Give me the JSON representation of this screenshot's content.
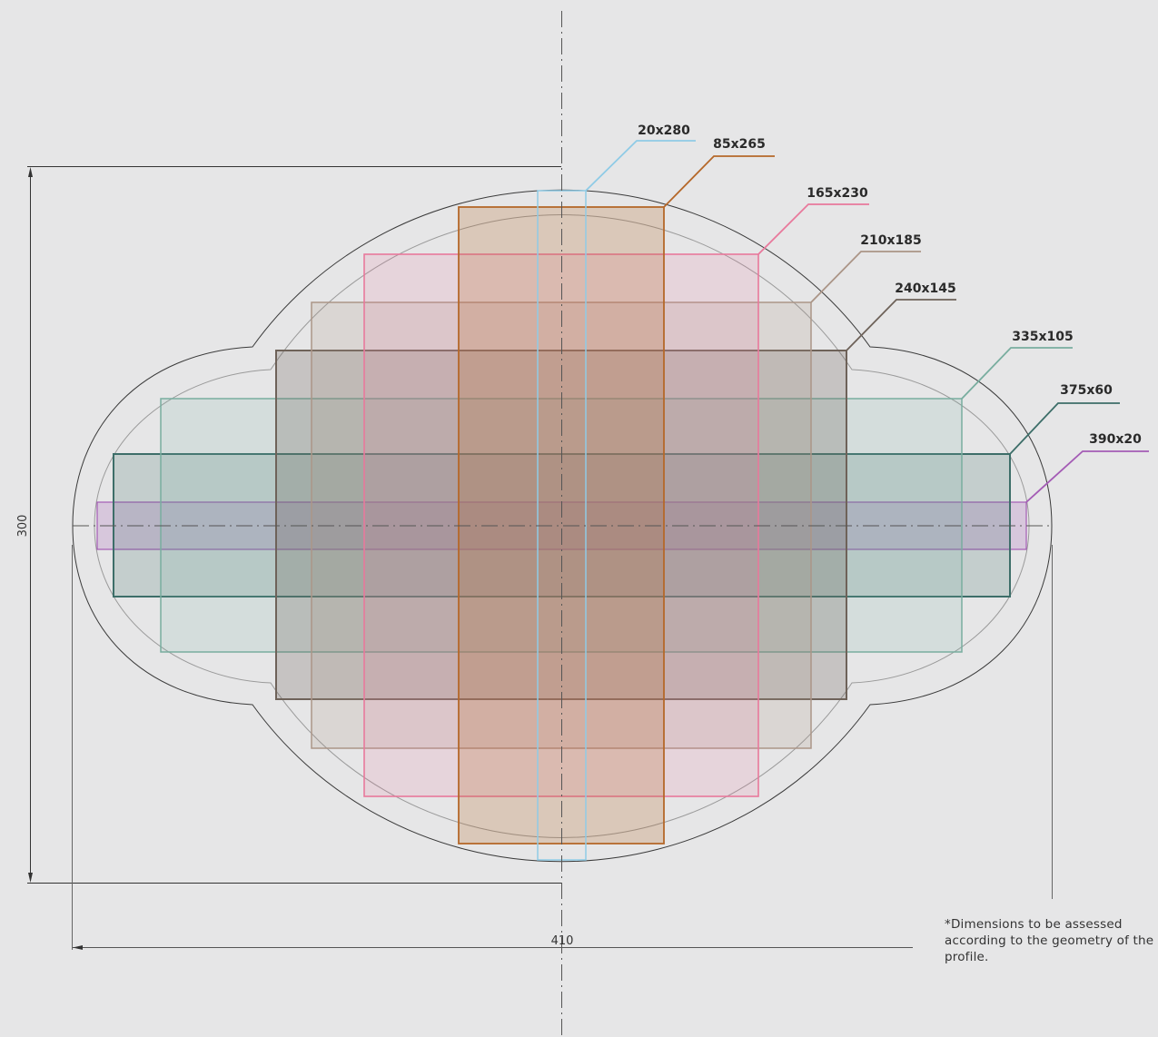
{
  "diagram": {
    "height_dimension": "300",
    "width_dimension": "410",
    "note": "*Dimensions to be assessed according to the geometry of the profile.",
    "rectangles": [
      {
        "id": "r20x280",
        "label": "20x280",
        "color": "#8fcbe6"
      },
      {
        "id": "r85x265",
        "label": "85x265",
        "color": "#b5682a"
      },
      {
        "id": "r165x230",
        "label": "165x230",
        "color": "#e8799c"
      },
      {
        "id": "r210x185",
        "label": "210x185",
        "color": "#ab9587"
      },
      {
        "id": "r240x145",
        "label": "240x145",
        "color": "#6e6259"
      },
      {
        "id": "r335x105",
        "label": "335x105",
        "color": "#78ad9f"
      },
      {
        "id": "r375x60",
        "label": "375x60",
        "color": "#3d6e69"
      },
      {
        "id": "r390x20",
        "label": "390x20",
        "color": "#a45cb5"
      }
    ]
  }
}
